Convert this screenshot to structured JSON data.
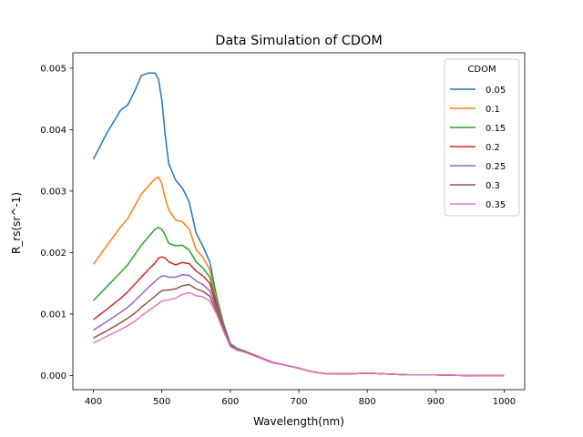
{
  "chart_data": {
    "type": "line",
    "title": "Data Simulation of CDOM",
    "xlabel": "Wavelength(nm)",
    "ylabel": "R_rs(sr^-1)",
    "xlim": [
      370,
      1030
    ],
    "ylim": [
      -0.00023,
      0.00525
    ],
    "xticks": [
      400,
      500,
      600,
      700,
      800,
      900,
      1000
    ],
    "xtick_labels": [
      "400",
      "500",
      "600",
      "700",
      "800",
      "900",
      "1000"
    ],
    "yticks": [
      0.0,
      0.001,
      0.002,
      0.003,
      0.004,
      0.005
    ],
    "ytick_labels": [
      "0.000",
      "0.001",
      "0.002",
      "0.003",
      "0.004",
      "0.005"
    ],
    "grid": false,
    "legend": {
      "title": "CDOM",
      "position": "top-right"
    },
    "x": [
      400,
      420,
      440,
      450,
      460,
      470,
      480,
      490,
      495,
      500,
      505,
      510,
      520,
      530,
      540,
      550,
      560,
      570,
      580,
      590,
      600,
      610,
      620,
      640,
      660,
      680,
      700,
      720,
      740,
      760,
      780,
      800,
      820,
      840,
      860,
      880,
      900,
      950,
      1000
    ],
    "series": [
      {
        "name": "0.05",
        "color": "#1f77b4",
        "values": [
          0.00352,
          0.00395,
          0.00432,
          0.0044,
          0.00462,
          0.00488,
          0.00492,
          0.00492,
          0.00482,
          0.00448,
          0.0039,
          0.00345,
          0.00318,
          0.00305,
          0.00282,
          0.00232,
          0.0021,
          0.00185,
          0.00128,
          0.00085,
          0.00052,
          0.00044,
          0.0004,
          0.00031,
          0.00022,
          0.00017,
          0.00012,
          6e-05,
          3e-05,
          3e-05,
          3e-05,
          4e-05,
          3e-05,
          2e-05,
          1e-05,
          1e-05,
          1e-05,
          0.0,
          0.0
        ]
      },
      {
        "name": "0.1",
        "color": "#ff7f0e",
        "values": [
          0.00181,
          0.00212,
          0.00242,
          0.00255,
          0.00275,
          0.00295,
          0.00308,
          0.0032,
          0.00323,
          0.00312,
          0.00288,
          0.0027,
          0.00253,
          0.0025,
          0.00238,
          0.00205,
          0.00192,
          0.00172,
          0.00122,
          0.00082,
          0.00051,
          0.00043,
          0.0004,
          0.00031,
          0.00022,
          0.00017,
          0.00012,
          6e-05,
          3e-05,
          3e-05,
          3e-05,
          4e-05,
          3e-05,
          2e-05,
          1e-05,
          1e-05,
          1e-05,
          0.0,
          0.0
        ]
      },
      {
        "name": "0.15",
        "color": "#2ca02c",
        "values": [
          0.00122,
          0.00145,
          0.00168,
          0.0018,
          0.00196,
          0.00212,
          0.00225,
          0.00238,
          0.00241,
          0.00238,
          0.00228,
          0.00215,
          0.00211,
          0.00212,
          0.00204,
          0.00185,
          0.00175,
          0.0016,
          0.00118,
          0.0008,
          0.0005,
          0.00043,
          0.0004,
          0.00031,
          0.00022,
          0.00017,
          0.00012,
          6e-05,
          3e-05,
          3e-05,
          3e-05,
          4e-05,
          3e-05,
          2e-05,
          1e-05,
          1e-05,
          1e-05,
          0.0,
          0.0
        ]
      },
      {
        "name": "0.2",
        "color": "#d62728",
        "values": [
          0.00091,
          0.00108,
          0.00126,
          0.00136,
          0.00148,
          0.0016,
          0.00172,
          0.00183,
          0.00191,
          0.00193,
          0.00191,
          0.00185,
          0.0018,
          0.00184,
          0.00182,
          0.0017,
          0.00162,
          0.0015,
          0.00112,
          0.00078,
          0.00049,
          0.00042,
          0.00039,
          0.00031,
          0.00022,
          0.00017,
          0.00012,
          6e-05,
          3e-05,
          3e-05,
          3e-05,
          4e-05,
          3e-05,
          2e-05,
          1e-05,
          1e-05,
          1e-05,
          0.0,
          0.0
        ]
      },
      {
        "name": "0.25",
        "color": "#9467bd",
        "values": [
          0.00074,
          0.00088,
          0.00103,
          0.00111,
          0.00121,
          0.00132,
          0.00143,
          0.00153,
          0.00158,
          0.00162,
          0.00162,
          0.0016,
          0.0016,
          0.00164,
          0.00163,
          0.00154,
          0.00148,
          0.00138,
          0.00108,
          0.00076,
          0.00048,
          0.00042,
          0.00039,
          0.0003,
          0.00022,
          0.00017,
          0.00012,
          6e-05,
          3e-05,
          3e-05,
          3e-05,
          4e-05,
          3e-05,
          2e-05,
          1e-05,
          1e-05,
          1e-05,
          0.0,
          0.0
        ]
      },
      {
        "name": "0.3",
        "color": "#8c564b",
        "values": [
          0.00061,
          0.00073,
          0.00086,
          0.00093,
          0.00101,
          0.00111,
          0.0012,
          0.00129,
          0.00134,
          0.00138,
          0.00139,
          0.00139,
          0.00141,
          0.00146,
          0.00148,
          0.00141,
          0.00137,
          0.00129,
          0.00104,
          0.00074,
          0.00048,
          0.00041,
          0.00039,
          0.0003,
          0.00021,
          0.00017,
          0.00012,
          6e-05,
          3e-05,
          3e-05,
          3e-05,
          4e-05,
          3e-05,
          2e-05,
          1e-05,
          1e-05,
          1e-05,
          0.0,
          0.0
        ]
      },
      {
        "name": "0.35",
        "color": "#e377c2",
        "values": [
          0.00053,
          0.00064,
          0.00075,
          0.00081,
          0.00088,
          0.00097,
          0.00105,
          0.00113,
          0.00117,
          0.00121,
          0.00122,
          0.00123,
          0.00126,
          0.00132,
          0.00135,
          0.0013,
          0.00128,
          0.00121,
          0.001,
          0.00072,
          0.00047,
          0.00041,
          0.00038,
          0.0003,
          0.00021,
          0.00017,
          0.00012,
          6e-05,
          3e-05,
          3e-05,
          3e-05,
          4e-05,
          3e-05,
          2e-05,
          1e-05,
          1e-05,
          1e-05,
          0.0,
          0.0
        ]
      }
    ]
  }
}
